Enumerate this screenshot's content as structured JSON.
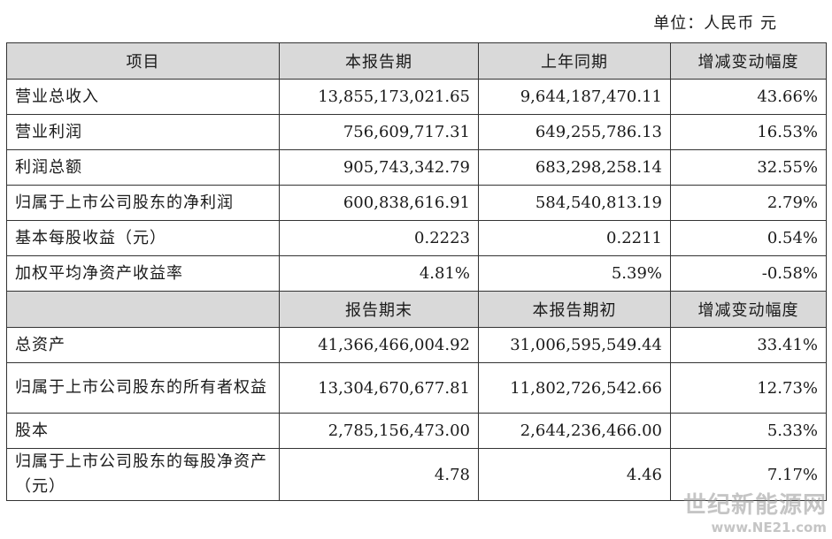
{
  "unit_note": "单位：人民币 元",
  "header1": [
    "项目",
    "本报告期",
    "上年同期",
    "增减变动幅度"
  ],
  "rows1": [
    {
      "label": "营业总收入",
      "current": "13,855,173,021.65",
      "previous": "9,644,187,470.11",
      "change": "43.66%"
    },
    {
      "label": "营业利润",
      "current": "756,609,717.31",
      "previous": "649,255,786.13",
      "change": "16.53%"
    },
    {
      "label": "利润总额",
      "current": "905,743,342.79",
      "previous": "683,298,258.14",
      "change": "32.55%"
    },
    {
      "label": "归属于上市公司股东的净利润",
      "current": "600,838,616.91",
      "previous": "584,540,813.19",
      "change": "2.79%"
    },
    {
      "label": "基本每股收益（元）",
      "current": "0.2223",
      "previous": "0.2211",
      "change": "0.54%"
    },
    {
      "label": "加权平均净资产收益率",
      "current": "4.81%",
      "previous": "5.39%",
      "change": "-0.58%"
    }
  ],
  "header2": [
    "",
    "报告期末",
    "本报告期初",
    "增减变动幅度"
  ],
  "rows2": [
    {
      "label": "总资产",
      "current": "41,366,466,004.92",
      "previous": "31,006,595,549.44",
      "change": "33.41%"
    },
    {
      "label": "归属于上市公司股东的所有者权益",
      "current": "13,304,670,677.81",
      "previous": "11,802,726,542.66",
      "change": "12.73%"
    },
    {
      "label": "股本",
      "current": "2,785,156,473.00",
      "previous": "2,644,236,466.00",
      "change": "5.33%"
    },
    {
      "label": "归属于上市公司股东的每股净资产（元）",
      "current": "4.78",
      "previous": "4.46",
      "change": "7.17%"
    }
  ],
  "watermark": {
    "line1": "世纪新能源网",
    "line2": "www.NE21.com"
  }
}
